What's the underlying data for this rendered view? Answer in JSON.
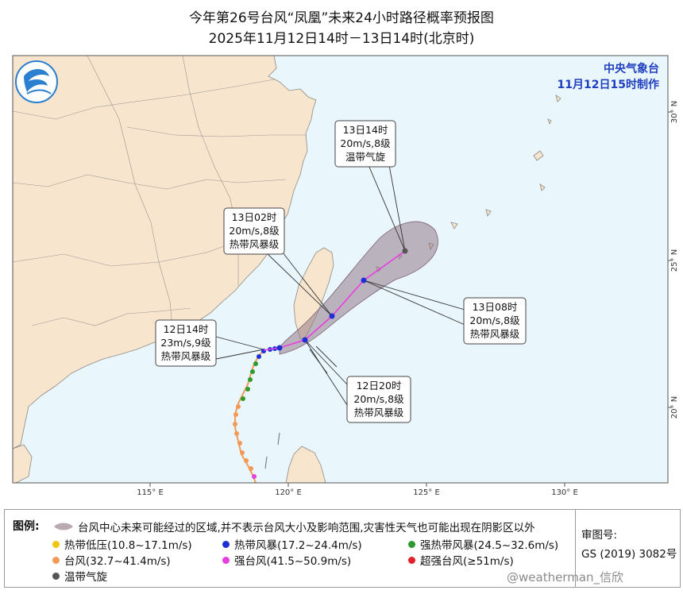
{
  "title": {
    "line1": "今年第26号台风“凤凰”未来24小时路径概率预报图",
    "line2": "2025年11月12日14时－13日14时(北京时)"
  },
  "agency": {
    "name": "中央气象台",
    "issued": "11月12日15时制作"
  },
  "axis": {
    "lon_labels": [
      "115° E",
      "120° E",
      "125° E",
      "130° E"
    ],
    "lat_labels": [
      "30° N",
      "25° N",
      "20° N"
    ]
  },
  "annotations": {
    "a1": {
      "time": "12日14时",
      "wind": "23m/s,9级",
      "cat": "热带风暴级"
    },
    "a2": {
      "time": "12日20时",
      "wind": "20m/s,8级",
      "cat": "热带风暴级"
    },
    "a3": {
      "time": "13日02时",
      "wind": "20m/s,8级",
      "cat": "热带风暴级"
    },
    "a4": {
      "time": "13日08时",
      "wind": "20m/s,8级",
      "cat": "热带风暴级"
    },
    "a5": {
      "time": "13日14时",
      "wind": "20m/s,8级",
      "cat": "温带气旋"
    }
  },
  "legend": {
    "label": "图例:",
    "cone_text": "台风中心未来可能经过的区域,并不表示台风大小及影响范围,灾害性天气也可能出现在阴影区以外",
    "items": [
      {
        "text": "热带低压(10.8~17.1m/s)",
        "color": "#f2c511"
      },
      {
        "text": "热带风暴(17.2~24.4m/s)",
        "color": "#1f2fd6"
      },
      {
        "text": "强热带风暴(24.5~32.6m/s)",
        "color": "#2e9a2e"
      },
      {
        "text": "台风(32.7~41.4m/s)",
        "color": "#f29a55"
      },
      {
        "text": "强台风(41.5~50.9m/s)",
        "color": "#e83fe0"
      },
      {
        "text": "超强台风(≥51m/s)",
        "color": "#e0202a"
      },
      {
        "text": "温带气旋",
        "color": "#555555"
      }
    ]
  },
  "approval": {
    "label": "审图号:",
    "number": "GS (2019) 3082号"
  },
  "watermark": "@weatherman_信欣",
  "colors": {
    "sea": "#e9f6fc",
    "land": "#f8e5ce",
    "cone": "#8c6f7e",
    "track": "#e83fe0"
  }
}
